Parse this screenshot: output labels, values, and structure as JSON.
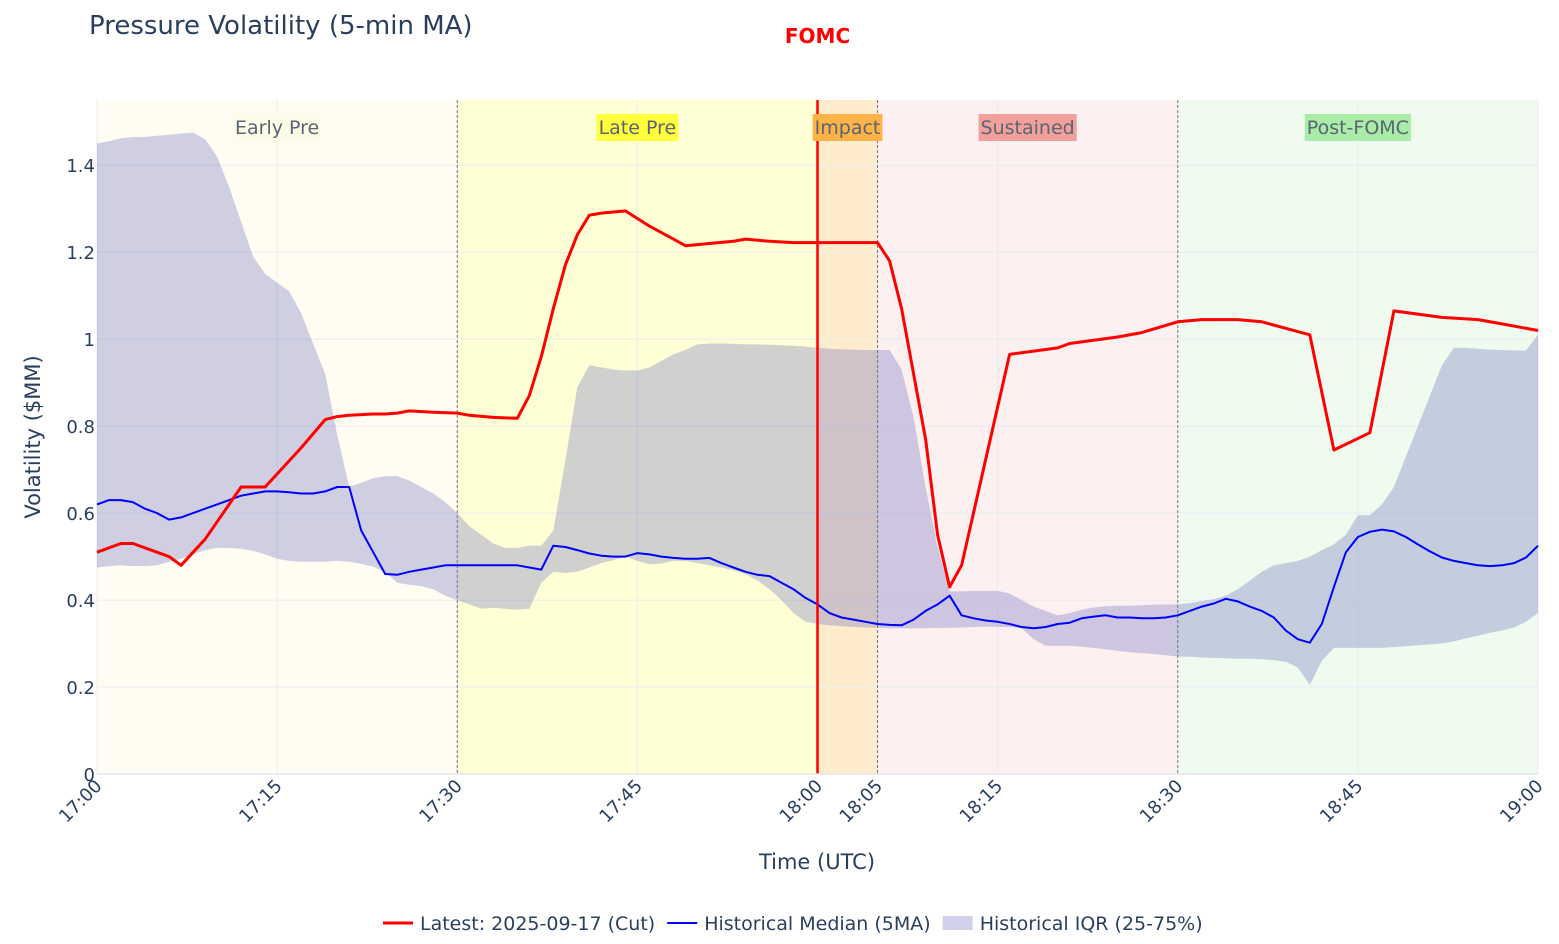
{
  "chart_data": {
    "type": "line",
    "title": "Pressure Volatility (5-min MA)",
    "xlabel": "Time (UTC)",
    "ylabel": "Volatility ($MM)",
    "xlim": [
      "17:00",
      "19:00"
    ],
    "ylim": [
      0,
      1.55
    ],
    "x_ticks": [
      "17:00",
      "17:15",
      "17:30",
      "17:45",
      "18:00",
      "18:05",
      "18:15",
      "18:30",
      "18:45",
      "19:00"
    ],
    "y_ticks": [
      "0",
      "0.2",
      "0.4",
      "0.6",
      "0.8",
      "1",
      "1.2",
      "1.4"
    ],
    "grid": true,
    "legend_position": "bottom-center",
    "event": {
      "label": "FOMC",
      "time": "18:00",
      "color": "#ff0000"
    },
    "phases": [
      {
        "label": "Early Pre",
        "start": "17:00",
        "end": "17:30",
        "fill": "#fffdf2",
        "label_bg": "#fcfce8"
      },
      {
        "label": "Late Pre",
        "start": "17:30",
        "end": "18:00",
        "fill": "#ffffd6",
        "label_bg": "#ffff3c"
      },
      {
        "label": "Impact",
        "start": "18:00",
        "end": "18:05",
        "fill": "#ffeccc",
        "label_bg": "#ffb347"
      },
      {
        "label": "Sustained",
        "start": "18:05",
        "end": "18:30",
        "fill": "#fcf0f0",
        "label_bg": "#f2a09c"
      },
      {
        "label": "Post-FOMC",
        "start": "18:30",
        "end": "19:00",
        "fill": "#eefbee",
        "label_bg": "#a8eca8"
      }
    ],
    "series": [
      {
        "name": "Latest: 2025-09-17 (Cut)",
        "color": "#ff0000",
        "x": [
          "17:00",
          "17:02",
          "17:03",
          "17:04",
          "17:05",
          "17:06",
          "17:07",
          "17:08",
          "17:09",
          "17:10",
          "17:11",
          "17:12",
          "17:14",
          "17:15",
          "17:17",
          "17:19",
          "17:20",
          "17:21",
          "17:23",
          "17:24",
          "17:25",
          "17:26",
          "17:28",
          "17:30",
          "17:31",
          "17:33",
          "17:35",
          "17:36",
          "17:37",
          "17:38",
          "17:39",
          "17:40",
          "17:41",
          "17:42",
          "17:44",
          "17:46",
          "17:48",
          "17:49",
          "17:51",
          "17:53",
          "17:54",
          "17:56",
          "17:58",
          "18:00",
          "18:02",
          "18:05",
          "18:06",
          "18:07",
          "18:09",
          "18:10",
          "18:11",
          "18:12",
          "18:16",
          "18:20",
          "18:21",
          "18:25",
          "18:27",
          "18:30",
          "18:32",
          "18:35",
          "18:37",
          "18:41",
          "18:43",
          "18:46",
          "18:48",
          "18:52",
          "18:55",
          "18:57",
          "19:00"
        ],
        "values": [
          0.51,
          0.53,
          0.53,
          0.52,
          0.51,
          0.5,
          0.48,
          0.51,
          0.54,
          0.58,
          0.62,
          0.66,
          0.66,
          0.69,
          0.75,
          0.815,
          0.822,
          0.825,
          0.828,
          0.828,
          0.83,
          0.835,
          0.832,
          0.83,
          0.825,
          0.82,
          0.818,
          0.87,
          0.96,
          1.07,
          1.17,
          1.24,
          1.285,
          1.29,
          1.295,
          1.26,
          1.23,
          1.215,
          1.22,
          1.225,
          1.23,
          1.225,
          1.222,
          1.222,
          1.222,
          1.222,
          1.18,
          1.07,
          0.77,
          0.55,
          0.43,
          0.48,
          0.965,
          0.98,
          0.99,
          1.005,
          1.015,
          1.04,
          1.045,
          1.045,
          1.04,
          1.01,
          0.745,
          0.785,
          1.065,
          1.05,
          1.045,
          1.035,
          1.02
        ]
      },
      {
        "name": "Historical Median (5MA)",
        "color": "#0000ff",
        "x": [
          "17:00",
          "17:01",
          "17:02",
          "17:03",
          "17:04",
          "17:05",
          "17:06",
          "17:07",
          "17:08",
          "17:09",
          "17:10",
          "17:11",
          "17:12",
          "17:13",
          "17:14",
          "17:15",
          "17:16",
          "17:17",
          "17:18",
          "17:19",
          "17:20",
          "17:21",
          "17:22",
          "17:23",
          "17:24",
          "17:25",
          "17:26",
          "17:27",
          "17:28",
          "17:29",
          "17:30",
          "17:31",
          "17:32",
          "17:33",
          "17:34",
          "17:35",
          "17:36",
          "17:37",
          "17:38",
          "17:39",
          "17:40",
          "17:41",
          "17:42",
          "17:43",
          "17:44",
          "17:45",
          "17:46",
          "17:47",
          "17:48",
          "17:49",
          "17:50",
          "17:51",
          "17:52",
          "17:53",
          "17:54",
          "17:55",
          "17:56",
          "17:57",
          "17:58",
          "17:59",
          "18:00",
          "18:01",
          "18:02",
          "18:03",
          "18:04",
          "18:05",
          "18:06",
          "18:07",
          "18:08",
          "18:09",
          "18:10",
          "18:11",
          "18:12",
          "18:13",
          "18:14",
          "18:15",
          "18:16",
          "18:17",
          "18:18",
          "18:19",
          "18:20",
          "18:21",
          "18:22",
          "18:23",
          "18:24",
          "18:25",
          "18:26",
          "18:27",
          "18:28",
          "18:29",
          "18:30",
          "18:31",
          "18:32",
          "18:33",
          "18:34",
          "18:35",
          "18:36",
          "18:37",
          "18:38",
          "18:39",
          "18:40",
          "18:41",
          "18:42",
          "18:43",
          "18:44",
          "18:45",
          "18:46",
          "18:47",
          "18:48",
          "18:49",
          "18:50",
          "18:51",
          "18:52",
          "18:53",
          "18:54",
          "18:55",
          "18:56",
          "18:57",
          "18:58",
          "18:59",
          "19:00"
        ],
        "values": [
          0.62,
          0.63,
          0.63,
          0.625,
          0.61,
          0.6,
          0.585,
          0.59,
          0.6,
          0.61,
          0.62,
          0.63,
          0.64,
          0.645,
          0.65,
          0.65,
          0.648,
          0.645,
          0.645,
          0.65,
          0.66,
          0.66,
          0.56,
          0.51,
          0.46,
          0.458,
          0.465,
          0.47,
          0.475,
          0.48,
          0.48,
          0.48,
          0.48,
          0.48,
          0.48,
          0.48,
          0.475,
          0.47,
          0.525,
          0.522,
          0.515,
          0.507,
          0.502,
          0.5,
          0.5,
          0.508,
          0.505,
          0.5,
          0.497,
          0.495,
          0.495,
          0.497,
          0.485,
          0.475,
          0.465,
          0.458,
          0.455,
          0.44,
          0.425,
          0.405,
          0.39,
          0.37,
          0.36,
          0.355,
          0.35,
          0.345,
          0.343,
          0.342,
          0.355,
          0.375,
          0.39,
          0.41,
          0.365,
          0.358,
          0.353,
          0.35,
          0.345,
          0.338,
          0.335,
          0.338,
          0.345,
          0.348,
          0.358,
          0.362,
          0.365,
          0.36,
          0.36,
          0.358,
          0.358,
          0.36,
          0.365,
          0.375,
          0.385,
          0.392,
          0.403,
          0.397,
          0.385,
          0.375,
          0.36,
          0.33,
          0.31,
          0.302,
          0.345,
          0.43,
          0.51,
          0.545,
          0.557,
          0.562,
          0.558,
          0.545,
          0.528,
          0.512,
          0.498,
          0.49,
          0.485,
          0.48,
          0.478,
          0.48,
          0.485,
          0.498,
          0.525
        ]
      },
      {
        "name": "Historical IQR (25-75%)",
        "color": "#b6b6dc",
        "x": [
          "17:00",
          "17:01",
          "17:02",
          "17:03",
          "17:04",
          "17:05",
          "17:06",
          "17:07",
          "17:08",
          "17:09",
          "17:10",
          "17:11",
          "17:12",
          "17:13",
          "17:14",
          "17:15",
          "17:16",
          "17:17",
          "17:18",
          "17:19",
          "17:20",
          "17:21",
          "17:22",
          "17:23",
          "17:24",
          "17:25",
          "17:26",
          "17:27",
          "17:28",
          "17:29",
          "17:30",
          "17:31",
          "17:32",
          "17:33",
          "17:34",
          "17:35",
          "17:36",
          "17:37",
          "17:38",
          "17:39",
          "17:40",
          "17:41",
          "17:42",
          "17:43",
          "17:44",
          "17:45",
          "17:46",
          "17:47",
          "17:48",
          "17:49",
          "17:50",
          "17:51",
          "17:52",
          "17:53",
          "17:54",
          "17:55",
          "17:56",
          "17:57",
          "17:58",
          "17:59",
          "18:00",
          "18:01",
          "18:02",
          "18:03",
          "18:04",
          "18:05",
          "18:06",
          "18:07",
          "18:08",
          "18:09",
          "18:10",
          "18:11",
          "18:12",
          "18:13",
          "18:14",
          "18:15",
          "18:16",
          "18:17",
          "18:18",
          "18:19",
          "18:20",
          "18:21",
          "18:22",
          "18:23",
          "18:24",
          "18:25",
          "18:26",
          "18:27",
          "18:28",
          "18:29",
          "18:30",
          "18:31",
          "18:32",
          "18:33",
          "18:34",
          "18:35",
          "18:36",
          "18:37",
          "18:38",
          "18:39",
          "18:40",
          "18:41",
          "18:42",
          "18:43",
          "18:44",
          "18:45",
          "18:46",
          "18:47",
          "18:48",
          "18:49",
          "18:50",
          "18:51",
          "18:52",
          "18:53",
          "18:54",
          "18:55",
          "18:56",
          "18:57",
          "18:58",
          "18:59",
          "19:00"
        ],
        "upper": [
          1.45,
          1.455,
          1.462,
          1.465,
          1.465,
          1.468,
          1.47,
          1.473,
          1.475,
          1.46,
          1.42,
          1.35,
          1.27,
          1.19,
          1.15,
          1.13,
          1.11,
          1.06,
          0.99,
          0.92,
          0.78,
          0.66,
          0.67,
          0.68,
          0.685,
          0.685,
          0.675,
          0.66,
          0.645,
          0.625,
          0.6,
          0.57,
          0.55,
          0.53,
          0.52,
          0.52,
          0.525,
          0.525,
          0.56,
          0.72,
          0.89,
          0.94,
          0.935,
          0.93,
          0.928,
          0.928,
          0.935,
          0.95,
          0.965,
          0.975,
          0.988,
          0.99,
          0.99,
          0.989,
          0.988,
          0.988,
          0.987,
          0.986,
          0.985,
          0.983,
          0.98,
          0.978,
          0.977,
          0.976,
          0.975,
          0.975,
          0.975,
          0.93,
          0.82,
          0.66,
          0.52,
          0.42,
          0.42,
          0.421,
          0.421,
          0.421,
          0.415,
          0.4,
          0.385,
          0.375,
          0.365,
          0.37,
          0.378,
          0.383,
          0.386,
          0.387,
          0.387,
          0.388,
          0.389,
          0.39,
          0.39,
          0.393,
          0.398,
          0.402,
          0.41,
          0.425,
          0.445,
          0.465,
          0.48,
          0.485,
          0.49,
          0.5,
          0.515,
          0.528,
          0.55,
          0.595,
          0.595,
          0.62,
          0.66,
          0.73,
          0.8,
          0.87,
          0.94,
          0.98,
          0.98,
          0.978,
          0.976,
          0.975,
          0.974,
          0.974,
          1.01
        ],
        "lower": [
          0.475,
          0.478,
          0.48,
          0.478,
          0.478,
          0.48,
          0.488,
          0.495,
          0.505,
          0.515,
          0.52,
          0.52,
          0.518,
          0.513,
          0.505,
          0.495,
          0.49,
          0.488,
          0.488,
          0.488,
          0.49,
          0.488,
          0.483,
          0.477,
          0.465,
          0.44,
          0.435,
          0.432,
          0.425,
          0.41,
          0.4,
          0.39,
          0.38,
          0.382,
          0.38,
          0.378,
          0.38,
          0.44,
          0.465,
          0.462,
          0.465,
          0.475,
          0.485,
          0.492,
          0.5,
          0.49,
          0.482,
          0.484,
          0.49,
          0.49,
          0.485,
          0.48,
          0.475,
          0.468,
          0.46,
          0.445,
          0.425,
          0.4,
          0.37,
          0.35,
          0.345,
          0.342,
          0.34,
          0.338,
          0.337,
          0.336,
          0.335,
          0.335,
          0.335,
          0.335,
          0.336,
          0.336,
          0.337,
          0.338,
          0.339,
          0.338,
          0.338,
          0.335,
          0.31,
          0.295,
          0.295,
          0.295,
          0.293,
          0.29,
          0.287,
          0.283,
          0.28,
          0.278,
          0.276,
          0.273,
          0.27,
          0.27,
          0.268,
          0.267,
          0.266,
          0.265,
          0.265,
          0.264,
          0.262,
          0.258,
          0.245,
          0.205,
          0.26,
          0.29,
          0.29,
          0.29,
          0.29,
          0.29,
          0.292,
          0.294,
          0.296,
          0.298,
          0.3,
          0.305,
          0.312,
          0.318,
          0.325,
          0.33,
          0.337,
          0.35,
          0.37
        ]
      }
    ]
  }
}
